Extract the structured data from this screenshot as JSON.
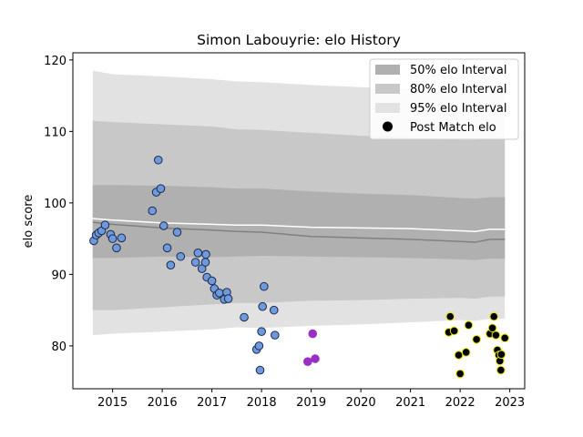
{
  "chart_data": {
    "type": "scatter",
    "title": "Simon Labouyrie: elo History",
    "xlabel": "",
    "ylabel": "elo score",
    "xlim": [
      2014.2,
      2023.3
    ],
    "ylim": [
      74,
      121
    ],
    "x_ticks": [
      2015,
      2016,
      2017,
      2018,
      2019,
      2020,
      2021,
      2022,
      2023
    ],
    "y_ticks": [
      80,
      90,
      100,
      110,
      120
    ],
    "grid": false,
    "legend_position": "top-right",
    "colors": {
      "band50": "#b0b0b0",
      "band80": "#c8c8c8",
      "band95": "#e2e2e2",
      "median_line": "#808080",
      "mean_line": "#ffffff",
      "point_blue_fill": "#6f99dc",
      "point_blue_edge": "#1a2a4a",
      "point_purple": "#9b2fc4",
      "point_black_fill": "#000000",
      "point_black_edge": "#e6e600"
    },
    "bands": {
      "x": [
        2014.6,
        2015.0,
        2016.0,
        2017.0,
        2017.5,
        2018.0,
        2019.0,
        2020.0,
        2021.0,
        2022.0,
        2022.3,
        2022.6,
        2022.9
      ],
      "p95_upper": [
        118.5,
        118.0,
        117.7,
        117.3,
        117.0,
        116.9,
        116.5,
        116.2,
        116.0,
        115.5,
        115.6,
        115.6,
        115.6
      ],
      "p95_lower": [
        81.5,
        81.7,
        82.0,
        82.3,
        82.6,
        82.5,
        82.8,
        83.0,
        83.3,
        83.6,
        83.5,
        83.8,
        83.8
      ],
      "p80_upper": [
        111.5,
        111.3,
        111.0,
        110.7,
        110.3,
        110.2,
        109.8,
        109.4,
        109.2,
        108.8,
        108.8,
        109.1,
        109.2
      ],
      "p80_lower": [
        85.0,
        85.0,
        85.4,
        85.8,
        86.0,
        86.0,
        86.3,
        86.4,
        86.6,
        86.7,
        86.6,
        86.9,
        86.9
      ],
      "p50_upper": [
        102.5,
        102.5,
        102.4,
        102.2,
        102.0,
        102.0,
        101.6,
        101.3,
        101.1,
        100.7,
        100.6,
        100.8,
        100.8
      ],
      "p50_lower": [
        92.3,
        92.3,
        92.5,
        92.4,
        92.5,
        92.6,
        92.5,
        92.4,
        92.3,
        92.1,
        92.0,
        92.2,
        92.2
      ],
      "median": [
        97.3,
        97.0,
        96.5,
        96.2,
        96.0,
        95.9,
        95.3,
        95.1,
        94.9,
        94.6,
        94.5,
        94.9,
        94.9
      ],
      "mean": [
        97.8,
        97.6,
        97.2,
        97.0,
        96.9,
        96.9,
        96.6,
        96.5,
        96.4,
        96.1,
        96.0,
        96.3,
        96.3
      ]
    },
    "series": [
      {
        "color": "blue",
        "points": [
          [
            2014.62,
            94.7
          ],
          [
            2014.67,
            95.5
          ],
          [
            2014.72,
            95.8
          ],
          [
            2014.78,
            96.1
          ],
          [
            2014.85,
            96.9
          ],
          [
            2014.96,
            95.6
          ],
          [
            2015.0,
            95.0
          ],
          [
            2015.08,
            93.7
          ],
          [
            2015.18,
            95.1
          ],
          [
            2015.8,
            98.9
          ],
          [
            2015.88,
            101.5
          ],
          [
            2015.92,
            106.0
          ],
          [
            2015.97,
            102.0
          ],
          [
            2016.03,
            96.8
          ],
          [
            2016.1,
            93.7
          ],
          [
            2016.17,
            91.3
          ],
          [
            2016.3,
            95.9
          ],
          [
            2016.37,
            92.5
          ],
          [
            2016.67,
            91.7
          ],
          [
            2016.72,
            93.0
          ],
          [
            2016.8,
            90.8
          ],
          [
            2016.87,
            91.7
          ],
          [
            2016.88,
            92.8
          ],
          [
            2016.9,
            89.6
          ],
          [
            2017.0,
            89.1
          ],
          [
            2017.05,
            88.0
          ],
          [
            2017.1,
            87.1
          ],
          [
            2017.15,
            87.4
          ],
          [
            2017.25,
            86.5
          ],
          [
            2017.3,
            87.5
          ],
          [
            2017.33,
            86.6
          ],
          [
            2017.65,
            84.0
          ],
          [
            2017.9,
            79.5
          ],
          [
            2017.95,
            80.0
          ],
          [
            2017.97,
            76.6
          ],
          [
            2018.0,
            82.0
          ],
          [
            2018.02,
            85.5
          ],
          [
            2018.05,
            88.3
          ],
          [
            2018.25,
            85.0
          ],
          [
            2018.27,
            81.5
          ]
        ]
      },
      {
        "color": "purple",
        "points": [
          [
            2018.93,
            77.8
          ],
          [
            2019.03,
            81.7
          ],
          [
            2019.08,
            78.2
          ]
        ]
      },
      {
        "color": "black",
        "points": [
          [
            2021.77,
            81.9
          ],
          [
            2021.8,
            84.1
          ],
          [
            2021.88,
            82.1
          ],
          [
            2021.97,
            78.7
          ],
          [
            2022.0,
            76.1
          ],
          [
            2022.12,
            79.1
          ],
          [
            2022.17,
            82.9
          ],
          [
            2022.33,
            80.9
          ],
          [
            2022.6,
            81.7
          ],
          [
            2022.65,
            82.5
          ],
          [
            2022.68,
            84.1
          ],
          [
            2022.72,
            81.5
          ],
          [
            2022.75,
            79.4
          ],
          [
            2022.78,
            78.7
          ],
          [
            2022.8,
            77.9
          ],
          [
            2022.82,
            76.6
          ],
          [
            2022.83,
            78.8
          ],
          [
            2022.9,
            81.1
          ]
        ]
      }
    ],
    "legend": [
      {
        "label": "50% elo Interval",
        "kind": "patch",
        "color": "#b0b0b0"
      },
      {
        "label": "80% elo Interval",
        "kind": "patch",
        "color": "#c8c8c8"
      },
      {
        "label": "95% elo Interval",
        "kind": "patch",
        "color": "#e2e2e2"
      },
      {
        "label": "Post Match elo",
        "kind": "marker",
        "color": "#000000"
      }
    ]
  }
}
